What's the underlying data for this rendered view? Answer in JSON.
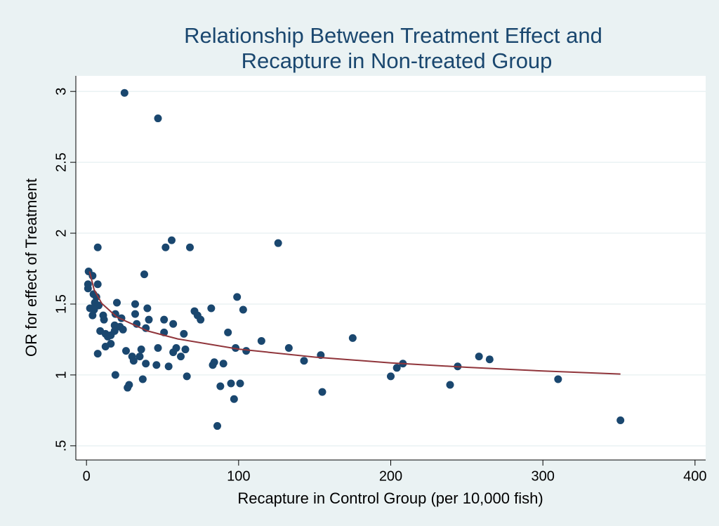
{
  "chart_data": {
    "type": "scatter",
    "title": [
      "Relationship Between Treatment Effect and",
      "Recapture in Non-treated Group"
    ],
    "x_label": "Recapture in Control Group (per 10,000 fish)",
    "y_label": "OR for effect of Treatment",
    "xlim": [
      -7,
      407
    ],
    "ylim": [
      0.4,
      3.11
    ],
    "xticks": [
      0,
      100,
      200,
      300,
      400
    ],
    "yticks": [
      {
        "value": 0.5,
        "label": ".5"
      },
      1,
      1.5,
      2,
      2.5,
      3
    ],
    "grid": true,
    "series": [
      {
        "type": "scatter",
        "color": "#1a476f",
        "x": [
          25,
          47,
          56,
          7.4,
          52,
          68,
          126,
          38,
          1.4,
          4,
          1,
          1,
          7.4,
          4.6,
          6.5,
          5.5,
          20,
          32,
          8,
          99,
          40,
          2.3,
          5,
          82,
          103,
          4,
          71,
          73,
          75,
          19,
          32,
          11,
          23,
          11.5,
          41,
          51,
          57,
          33,
          18.5,
          39,
          22,
          9,
          18.5,
          24,
          51,
          64,
          93,
          12.5,
          14,
          16,
          115,
          175,
          16,
          12.5,
          47,
          36,
          26,
          57,
          59,
          65,
          98,
          105,
          133,
          7.4,
          30,
          35,
          62,
          154,
          143,
          258,
          265,
          31,
          39,
          46,
          54,
          84,
          83,
          90,
          208,
          204,
          244,
          19,
          66,
          200,
          37,
          310,
          95,
          101,
          28,
          239,
          88,
          27,
          155,
          97,
          86,
          351
        ],
        "values": [
          2.99,
          2.81,
          1.95,
          1.9,
          1.9,
          1.9,
          1.93,
          1.71,
          1.73,
          1.7,
          1.64,
          1.61,
          1.64,
          1.57,
          1.55,
          1.51,
          1.51,
          1.5,
          1.49,
          1.55,
          1.47,
          1.47,
          1.46,
          1.47,
          1.46,
          1.42,
          1.45,
          1.42,
          1.39,
          1.43,
          1.43,
          1.42,
          1.4,
          1.39,
          1.39,
          1.39,
          1.36,
          1.36,
          1.35,
          1.33,
          1.34,
          1.31,
          1.31,
          1.32,
          1.3,
          1.29,
          1.3,
          1.29,
          1.27,
          1.28,
          1.24,
          1.26,
          1.22,
          1.2,
          1.19,
          1.18,
          1.17,
          1.16,
          1.19,
          1.18,
          1.19,
          1.17,
          1.19,
          1.15,
          1.13,
          1.13,
          1.13,
          1.14,
          1.1,
          1.13,
          1.11,
          1.1,
          1.08,
          1.07,
          1.06,
          1.09,
          1.07,
          1.08,
          1.08,
          1.05,
          1.06,
          1.0,
          0.99,
          0.99,
          0.97,
          0.97,
          0.94,
          0.94,
          0.93,
          0.93,
          0.92,
          0.91,
          0.88,
          0.83,
          0.64,
          0.68
        ]
      },
      {
        "type": "line",
        "color": "#90353b",
        "x": [
          2,
          5,
          10,
          20,
          40,
          60,
          100,
          150,
          200,
          250,
          300,
          351
        ],
        "values": [
          1.73,
          1.602,
          1.505,
          1.408,
          1.311,
          1.254,
          1.182,
          1.126,
          1.085,
          1.054,
          1.028,
          1.006
        ]
      }
    ]
  }
}
